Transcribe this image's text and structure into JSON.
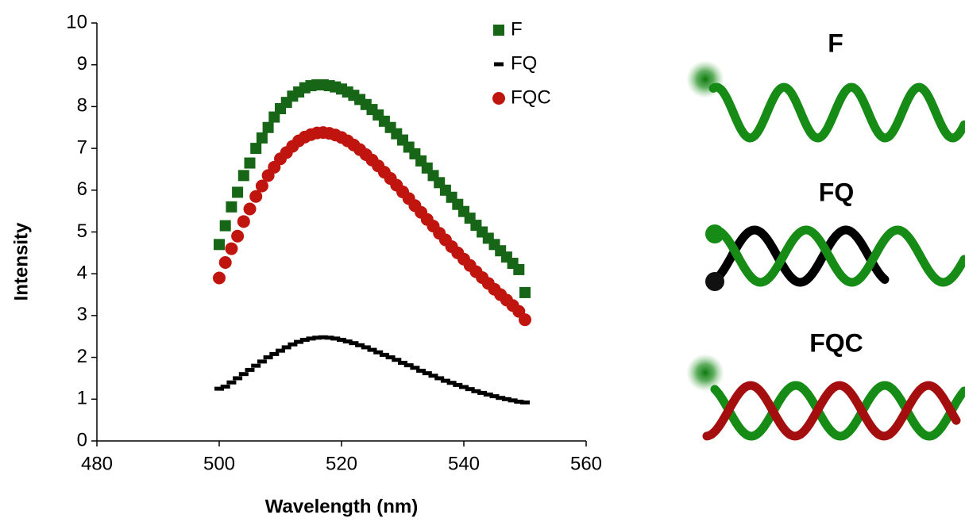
{
  "chart_data": {
    "type": "scatter",
    "xlabel": "Wavelength (nm)",
    "ylabel": "Intensity",
    "xlim": [
      480,
      560
    ],
    "xticks": [
      480,
      500,
      520,
      540,
      560
    ],
    "ylim": [
      0,
      10
    ],
    "yticks": [
      0,
      1,
      2,
      3,
      4,
      5,
      6,
      7,
      8,
      9,
      10
    ],
    "legend": "top-right",
    "x": [
      500,
      501,
      502,
      503,
      504,
      505,
      506,
      507,
      508,
      509,
      510,
      511,
      512,
      513,
      514,
      515,
      516,
      517,
      518,
      519,
      520,
      521,
      522,
      523,
      524,
      525,
      526,
      527,
      528,
      529,
      530,
      531,
      532,
      533,
      534,
      535,
      536,
      537,
      538,
      539,
      540,
      541,
      542,
      543,
      544,
      545,
      546,
      547,
      548,
      549,
      550
    ],
    "series": [
      {
        "name": "F",
        "color": "#176617",
        "marker": "square",
        "values": [
          4.7,
          5.15,
          5.6,
          5.95,
          6.35,
          6.65,
          7.0,
          7.25,
          7.5,
          7.75,
          7.95,
          8.1,
          8.25,
          8.35,
          8.45,
          8.5,
          8.52,
          8.52,
          8.5,
          8.47,
          8.42,
          8.35,
          8.27,
          8.17,
          8.05,
          7.93,
          7.8,
          7.65,
          7.5,
          7.35,
          7.2,
          7.03,
          6.87,
          6.7,
          6.53,
          6.35,
          6.18,
          6.0,
          5.83,
          5.66,
          5.49,
          5.33,
          5.16,
          5.0,
          4.85,
          4.7,
          4.55,
          4.4,
          4.25,
          4.1,
          3.55
        ]
      },
      {
        "name": "FQ",
        "color": "#000000",
        "marker": "dash",
        "values": [
          1.25,
          1.3,
          1.4,
          1.5,
          1.6,
          1.7,
          1.8,
          1.9,
          2.0,
          2.08,
          2.16,
          2.24,
          2.31,
          2.37,
          2.42,
          2.45,
          2.47,
          2.48,
          2.47,
          2.45,
          2.42,
          2.38,
          2.34,
          2.29,
          2.24,
          2.18,
          2.12,
          2.06,
          2.0,
          1.94,
          1.87,
          1.81,
          1.75,
          1.68,
          1.62,
          1.56,
          1.5,
          1.44,
          1.39,
          1.34,
          1.29,
          1.24,
          1.19,
          1.15,
          1.11,
          1.07,
          1.03,
          1.0,
          0.97,
          0.94,
          0.92
        ]
      },
      {
        "name": "FQC",
        "color": "#c0150f",
        "marker": "circle",
        "values": [
          3.9,
          4.27,
          4.6,
          4.9,
          5.25,
          5.55,
          5.85,
          6.1,
          6.35,
          6.55,
          6.75,
          6.9,
          7.05,
          7.18,
          7.27,
          7.33,
          7.37,
          7.38,
          7.36,
          7.32,
          7.26,
          7.18,
          7.08,
          6.97,
          6.85,
          6.72,
          6.58,
          6.43,
          6.28,
          6.12,
          5.96,
          5.8,
          5.63,
          5.47,
          5.3,
          5.14,
          4.97,
          4.81,
          4.65,
          4.5,
          4.35,
          4.2,
          4.05,
          3.91,
          3.77,
          3.63,
          3.5,
          3.37,
          3.24,
          3.1,
          2.9
        ]
      }
    ]
  },
  "diagram": {
    "labels": [
      "F",
      "FQ",
      "FQC"
    ]
  }
}
